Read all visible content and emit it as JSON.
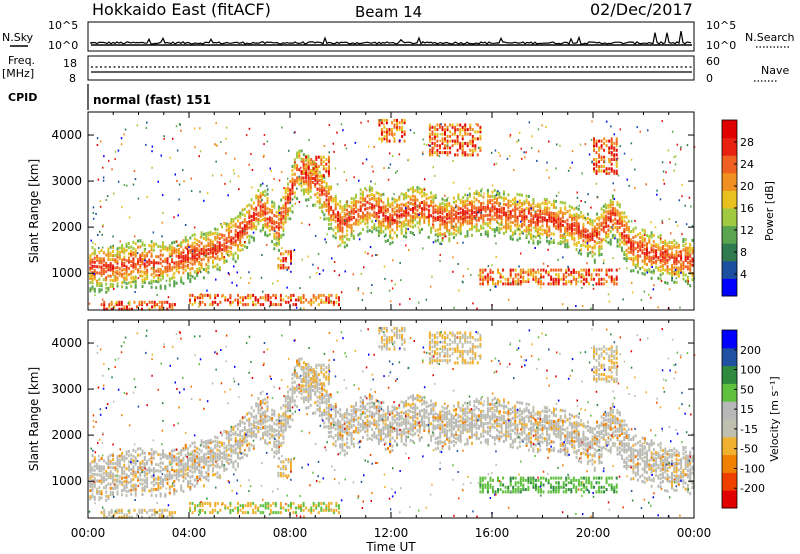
{
  "header": {
    "station": "Hokkaido East (fitACF)",
    "beam": "Beam 14",
    "date": "02/Dec/2017"
  },
  "top_panels": {
    "nsky_label": "N.Sky",
    "nsky_ticks": [
      "10^5",
      "10^0"
    ],
    "nsearch_label": "N.Search",
    "freq_label_line1": "Freq.",
    "freq_label_line2": "[MHz]",
    "freq_ticks": [
      "18",
      "8"
    ],
    "nave_label": "Nave",
    "nave_ticks": [
      "60",
      "0"
    ],
    "cpid_label": "CPID",
    "cpid_value": "normal (fast) 151"
  },
  "chart_data": [
    {
      "type": "heatmap",
      "title": "",
      "ylabel": "Slant Range [km]",
      "xlabel": "Time UT",
      "x_ticks": [
        "00:00",
        "04:00",
        "08:00",
        "12:00",
        "16:00",
        "20:00",
        "00:00"
      ],
      "x_range_hours": [
        0,
        24
      ],
      "y_ticks": [
        "1000",
        "2000",
        "3000",
        "4000"
      ],
      "ylim": [
        200,
        4500
      ],
      "colorbar_label": "Power [dB]",
      "colorbar_ticks": [
        "28",
        "24",
        "20",
        "16",
        "12",
        "8",
        "4"
      ],
      "colorbar_range": [
        0,
        30
      ],
      "colors": [
        "#0000ff",
        "#1c4fa0",
        "#2f7a4f",
        "#5aa450",
        "#a0c840",
        "#e8c020",
        "#f09020",
        "#f06020",
        "#e82010",
        "#e00000"
      ]
    },
    {
      "type": "heatmap",
      "title": "",
      "ylabel": "Slant Range [km]",
      "xlabel": "Time UT",
      "x_ticks": [
        "00:00",
        "04:00",
        "08:00",
        "12:00",
        "16:00",
        "20:00",
        "00:00"
      ],
      "x_range_hours": [
        0,
        24
      ],
      "y_ticks": [
        "1000",
        "2000",
        "3000",
        "4000"
      ],
      "ylim": [
        200,
        4500
      ],
      "colorbar_label": "Velocity [m s⁻¹]",
      "colorbar_ticks": [
        "200",
        "100",
        "50",
        "15",
        "-15",
        "-50",
        "-100",
        "-200"
      ],
      "colorbar_range": [
        -250,
        250
      ],
      "colors": [
        "#e00000",
        "#f04000",
        "#f08000",
        "#f0b030",
        "#c0c0b0",
        "#b8b8b8",
        "#60c040",
        "#2f8a40",
        "#2050a0",
        "#0000ff"
      ]
    }
  ],
  "x_axis_title": "Time UT"
}
